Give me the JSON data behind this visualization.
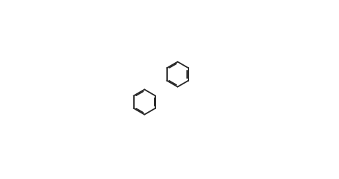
{
  "background_color": "#ffffff",
  "line_color": "#2a2a2a",
  "line_width": 1.4,
  "text_color": "#2a2a2a",
  "font_size": 8.5,
  "dbo_ring": 0.025,
  "dbo_ext": 0.02
}
